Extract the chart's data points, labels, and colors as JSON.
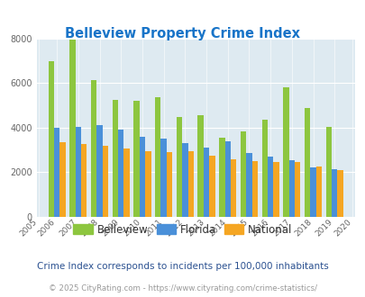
{
  "title": "Belleview Property Crime Index",
  "years": [
    2006,
    2007,
    2008,
    2009,
    2010,
    2011,
    2012,
    2013,
    2014,
    2015,
    2016,
    2017,
    2018,
    2019
  ],
  "belleview": [
    7000,
    7950,
    6150,
    5250,
    5200,
    5350,
    4500,
    4550,
    3550,
    3850,
    4350,
    5800,
    4900,
    4050
  ],
  "florida": [
    4000,
    4050,
    4100,
    3900,
    3600,
    3500,
    3300,
    3100,
    3400,
    2850,
    2700,
    2550,
    2200,
    2150
  ],
  "national": [
    3350,
    3250,
    3200,
    3050,
    2950,
    2900,
    2950,
    2750,
    2600,
    2500,
    2450,
    2450,
    2250,
    2100
  ],
  "belleview_color": "#8dc63f",
  "florida_color": "#4a90d9",
  "national_color": "#f5a623",
  "bg_color": "#deeaf1",
  "ylim": [
    0,
    8000
  ],
  "yticks": [
    0,
    2000,
    4000,
    6000,
    8000
  ],
  "bar_width": 0.27,
  "subtitle": "Crime Index corresponds to incidents per 100,000 inhabitants",
  "footer": "© 2025 CityRating.com - https://www.cityrating.com/crime-statistics/",
  "title_color": "#1874c8",
  "subtitle_color": "#2a5090",
  "footer_color": "#999999",
  "legend_labels": [
    "Belleview",
    "Florida",
    "National"
  ],
  "legend_text_color": "#333333"
}
